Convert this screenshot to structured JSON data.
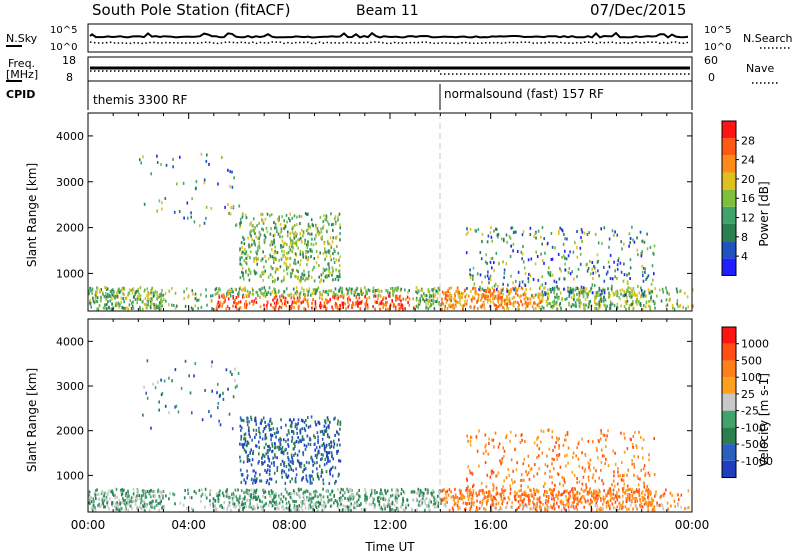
{
  "header": {
    "station": "South Pole Station (fitACF)",
    "beam": "Beam 11",
    "date": "07/Dec/2015"
  },
  "noise_panel": {
    "left_label": "N.Sky",
    "left_ticks": [
      "10^5",
      "10^0"
    ],
    "right_label": "N.Search",
    "right_ticks": [
      "10^5",
      "10^0"
    ]
  },
  "freq_panel": {
    "left_label_1": "Freq.",
    "left_label_2": "[MHz]",
    "left_ticks": [
      "18",
      "8"
    ],
    "right_label": "Nave",
    "right_ticks": [
      "60",
      "0"
    ]
  },
  "cpid_panel": {
    "label": "CPID",
    "modes": [
      {
        "name": "themis 3300 RF",
        "start_hour": 0
      },
      {
        "name": "normalsound (fast) 157 RF",
        "start_hour": 14
      }
    ]
  },
  "chart_data": [
    {
      "type": "heatmap",
      "title": "Power",
      "ylabel": "Slant Range [km]",
      "xlabel": "",
      "colorbar_label": "Power [dB]",
      "colorbar_ticks": [
        "28",
        "24",
        "20",
        "16",
        "12",
        "8",
        "4"
      ],
      "ylim": [
        180,
        4500
      ],
      "yticks": [
        "1000",
        "2000",
        "3000",
        "4000"
      ],
      "xlim_hours": [
        0,
        24
      ],
      "colors": [
        "#1f1fff",
        "#1f52bf",
        "#2a7f4f",
        "#41a36b",
        "#7ec03b",
        "#e0c020",
        "#ff8c1a",
        "#ff5a14",
        "#ff1414"
      ]
    },
    {
      "type": "heatmap",
      "title": "Velocity",
      "ylabel": "Slant Range [km]",
      "xlabel": "Time UT",
      "colorbar_label": "Velocity [m s-1]",
      "colorbar_ticks": [
        "1000",
        "500",
        "100",
        "25",
        "-25",
        "-100",
        "-500",
        "-1000"
      ],
      "ylim": [
        180,
        4500
      ],
      "yticks": [
        "1000",
        "2000",
        "3000",
        "4000"
      ],
      "xticks": [
        "00:00",
        "04:00",
        "08:00",
        "12:00",
        "16:00",
        "20:00",
        "00:00"
      ],
      "xlim_hours": [
        0,
        24
      ],
      "colors": [
        "#1f3fbf",
        "#2a5fbf",
        "#2a7f4f",
        "#41a36b",
        "#c8c8c8",
        "#ffa01e",
        "#ff7f1a",
        "#ff4f14",
        "#ff1414"
      ]
    }
  ]
}
